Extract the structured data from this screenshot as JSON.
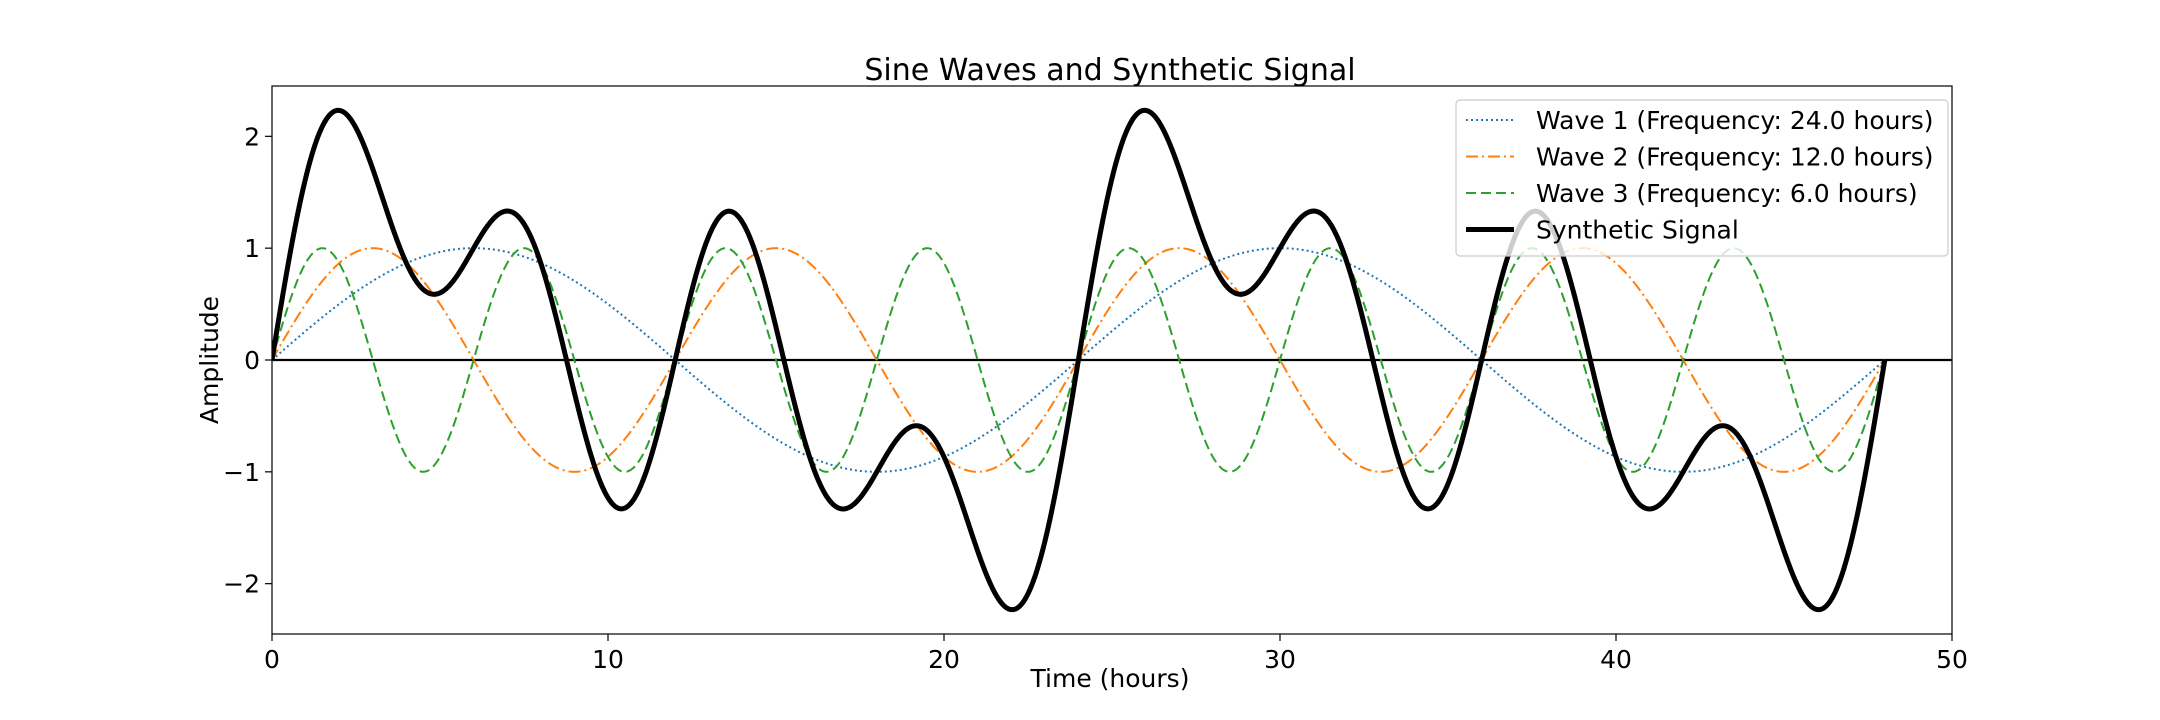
{
  "chart_data": {
    "type": "line",
    "title": "Sine Waves and Synthetic Signal",
    "xlabel": "Time (hours)",
    "ylabel": "Amplitude",
    "xlim": [
      0,
      50
    ],
    "ylim": [
      -2.45,
      2.45
    ],
    "x_ticks": [
      0,
      10,
      20,
      30,
      40,
      50
    ],
    "y_ticks": [
      -2,
      -1,
      0,
      1,
      2
    ],
    "x_range": [
      0,
      48
    ],
    "zero_line": true,
    "grid": false,
    "legend_location": "upper right",
    "series": [
      {
        "name": "Wave 1 (Frequency: 24.0 hours)",
        "period": 24,
        "amplitude": 1,
        "color": "#1f77b4",
        "style": "dotted"
      },
      {
        "name": "Wave 2 (Frequency: 12.0 hours)",
        "period": 12,
        "amplitude": 1,
        "color": "#ff7f0e",
        "style": "dashdot"
      },
      {
        "name": "Wave 3 (Frequency: 6.0 hours)",
        "period": 6,
        "amplitude": 1,
        "color": "#2ca02c",
        "style": "dashed"
      },
      {
        "name": "Synthetic Signal",
        "formula": "sum of waves 1-3",
        "color": "#000000",
        "style": "solid-thick"
      }
    ]
  }
}
